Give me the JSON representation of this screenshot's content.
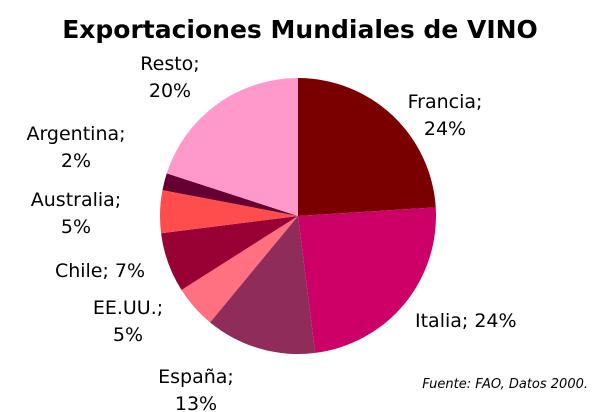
{
  "chart_data": {
    "type": "pie",
    "title": "Exportaciones Mundiales de VINO",
    "categories": [
      "Francia;",
      "Italia;",
      "España;",
      "EE.UU.;",
      "Chile;",
      "Australia;",
      "Argentina;",
      "Resto;"
    ],
    "values": [
      24,
      24,
      13,
      5,
      7,
      5,
      2,
      20
    ],
    "value_labels": [
      "24%",
      "24%",
      "13%",
      "5%",
      "7%",
      "5%",
      "2%",
      "20%"
    ],
    "colors": [
      "#7a0000",
      "#cc0066",
      "#8f2c59",
      "#ff7080",
      "#990033",
      "#ff4d4d",
      "#660033",
      "#ff99cc"
    ],
    "source": "Fuente: FAO, Datos 2000."
  }
}
